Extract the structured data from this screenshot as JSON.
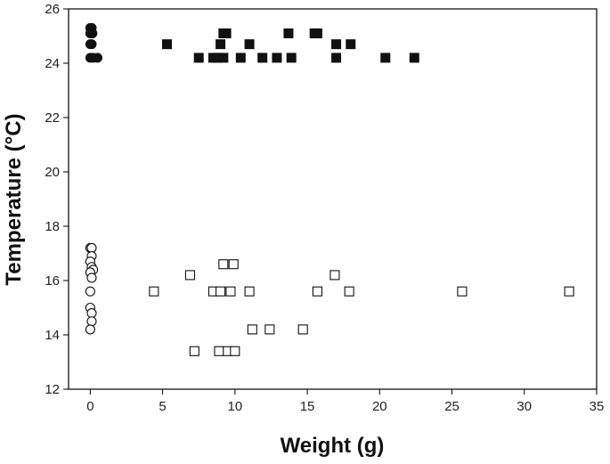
{
  "chart_data": {
    "type": "scatter",
    "title": "",
    "xlabel": "Weight (g)",
    "ylabel": "Temperature (°C)",
    "xlim": [
      -1.5,
      35
    ],
    "ylim": [
      12,
      26
    ],
    "xticks": [
      0,
      5,
      10,
      15,
      20,
      25,
      30,
      35
    ],
    "yticks": [
      12,
      14,
      16,
      18,
      20,
      22,
      24,
      26
    ],
    "grid": false,
    "legend": "none",
    "series": [
      {
        "marker": "circle",
        "fill": "#111111",
        "points": [
          {
            "x": 0.0,
            "y": 25.3
          },
          {
            "x": 0.1,
            "y": 25.3
          },
          {
            "x": 0.0,
            "y": 25.1
          },
          {
            "x": 0.15,
            "y": 25.1
          },
          {
            "x": 0.0,
            "y": 24.7
          },
          {
            "x": 0.1,
            "y": 24.7
          },
          {
            "x": 0.0,
            "y": 24.2
          },
          {
            "x": 0.2,
            "y": 24.2
          },
          {
            "x": 0.5,
            "y": 24.2
          }
        ]
      },
      {
        "marker": "square",
        "fill": "#111111",
        "points": [
          {
            "x": 5.3,
            "y": 24.7
          },
          {
            "x": 7.5,
            "y": 24.2
          },
          {
            "x": 8.5,
            "y": 24.2
          },
          {
            "x": 8.8,
            "y": 24.2
          },
          {
            "x": 9.0,
            "y": 24.7
          },
          {
            "x": 9.2,
            "y": 24.2
          },
          {
            "x": 9.2,
            "y": 25.1
          },
          {
            "x": 9.4,
            "y": 25.1
          },
          {
            "x": 10.4,
            "y": 24.2
          },
          {
            "x": 11.0,
            "y": 24.7
          },
          {
            "x": 11.9,
            "y": 24.2
          },
          {
            "x": 12.9,
            "y": 24.2
          },
          {
            "x": 13.7,
            "y": 25.1
          },
          {
            "x": 13.9,
            "y": 24.2
          },
          {
            "x": 15.5,
            "y": 25.1
          },
          {
            "x": 15.7,
            "y": 25.1
          },
          {
            "x": 17.0,
            "y": 24.7
          },
          {
            "x": 17.0,
            "y": 24.2
          },
          {
            "x": 18.0,
            "y": 24.7
          },
          {
            "x": 20.4,
            "y": 24.2
          },
          {
            "x": 22.4,
            "y": 24.2
          }
        ]
      },
      {
        "marker": "circle-open",
        "fill": "#ffffff",
        "points": [
          {
            "x": 0.0,
            "y": 17.2
          },
          {
            "x": 0.1,
            "y": 17.2
          },
          {
            "x": 0.1,
            "y": 16.9
          },
          {
            "x": 0.0,
            "y": 16.7
          },
          {
            "x": 0.1,
            "y": 16.5
          },
          {
            "x": 0.2,
            "y": 16.4
          },
          {
            "x": 0.0,
            "y": 16.3
          },
          {
            "x": 0.1,
            "y": 16.1
          },
          {
            "x": 0.0,
            "y": 15.6
          },
          {
            "x": 0.0,
            "y": 15.0
          },
          {
            "x": 0.1,
            "y": 14.8
          },
          {
            "x": 0.1,
            "y": 14.5
          },
          {
            "x": 0.0,
            "y": 14.2
          }
        ]
      },
      {
        "marker": "square-open",
        "fill": "#ffffff",
        "points": [
          {
            "x": 4.4,
            "y": 15.6
          },
          {
            "x": 6.9,
            "y": 16.2
          },
          {
            "x": 7.2,
            "y": 13.4
          },
          {
            "x": 8.5,
            "y": 15.6
          },
          {
            "x": 8.9,
            "y": 13.4
          },
          {
            "x": 9.0,
            "y": 15.6
          },
          {
            "x": 9.2,
            "y": 16.6
          },
          {
            "x": 9.5,
            "y": 13.4
          },
          {
            "x": 9.7,
            "y": 15.6
          },
          {
            "x": 9.9,
            "y": 16.6
          },
          {
            "x": 10.0,
            "y": 13.4
          },
          {
            "x": 11.0,
            "y": 15.6
          },
          {
            "x": 11.2,
            "y": 14.2
          },
          {
            "x": 12.4,
            "y": 14.2
          },
          {
            "x": 14.7,
            "y": 14.2
          },
          {
            "x": 15.7,
            "y": 15.6
          },
          {
            "x": 16.9,
            "y": 16.2
          },
          {
            "x": 17.9,
            "y": 15.6
          },
          {
            "x": 25.7,
            "y": 15.6
          },
          {
            "x": 33.1,
            "y": 15.6
          }
        ]
      }
    ]
  }
}
